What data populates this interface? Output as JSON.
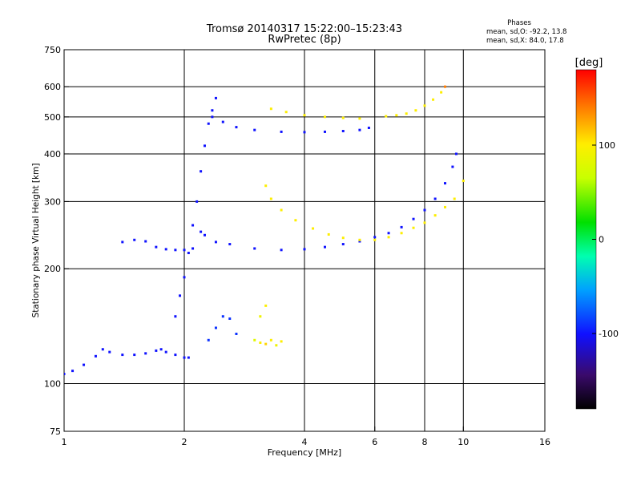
{
  "title": "Tromsø 20140317 15:22:00–15:23:43",
  "subtitle": "RwPretec (8p)",
  "phases": {
    "title": "Phases",
    "line_o": "mean, sd,O: -92.2, 13.8",
    "line_x": "mean, sd,X:  84.0, 17.8"
  },
  "colorbar": {
    "label": "[deg]",
    "ticks": [
      {
        "label": "100",
        "value": 100
      },
      {
        "label": "0",
        "value": 0
      },
      {
        "label": "-100",
        "value": -100
      }
    ],
    "range": [
      -180,
      180
    ]
  },
  "chart_data": {
    "type": "scatter",
    "title": "Tromsø 20140317 15:22:00–15:23:43",
    "subtitle": "RwPretec (8p)",
    "xlabel": "Frequency [MHz]",
    "ylabel": "Stationary phase Virtual Height [km]",
    "xscale": "log",
    "yscale": "log",
    "xlim": [
      1,
      16
    ],
    "ylim": [
      75,
      750
    ],
    "xticks": [
      {
        "label": "1",
        "value": 1
      },
      {
        "label": "2",
        "value": 2
      },
      {
        "label": "4",
        "value": 4
      },
      {
        "label": "6",
        "value": 6
      },
      {
        "label": "8",
        "value": 8
      },
      {
        "label": "10",
        "value": 10
      },
      {
        "label": "16",
        "value": 16
      }
    ],
    "yticks": [
      {
        "label": "75",
        "value": 75
      },
      {
        "label": "100",
        "value": 100
      },
      {
        "label": "200",
        "value": 200
      },
      {
        "label": "300",
        "value": 300
      },
      {
        "label": "400",
        "value": 400
      },
      {
        "label": "500",
        "value": 500
      },
      {
        "label": "600",
        "value": 600
      },
      {
        "label": "750",
        "value": 750
      }
    ],
    "grid": true,
    "color_encoding": "phase [deg]",
    "series": [
      {
        "points": [
          [
            1.0,
            106,
            -100
          ],
          [
            1.05,
            108,
            -100
          ],
          [
            1.12,
            112,
            -100
          ],
          [
            1.2,
            118,
            -100
          ],
          [
            1.25,
            123,
            -100
          ],
          [
            1.3,
            121,
            -100
          ],
          [
            1.4,
            119,
            -100
          ],
          [
            1.5,
            119,
            -100
          ],
          [
            1.6,
            120,
            -100
          ],
          [
            1.7,
            122,
            -100
          ],
          [
            1.75,
            123,
            -100
          ],
          [
            1.8,
            121,
            -100
          ],
          [
            1.9,
            119,
            -100
          ],
          [
            2.0,
            117,
            -100
          ],
          [
            2.05,
            117,
            -100
          ]
        ]
      },
      {
        "points": [
          [
            1.4,
            235,
            -100
          ],
          [
            1.5,
            238,
            -100
          ],
          [
            1.6,
            236,
            -100
          ],
          [
            1.7,
            228,
            -100
          ],
          [
            1.8,
            225,
            -100
          ],
          [
            1.9,
            224,
            -100
          ],
          [
            2.0,
            224,
            -100
          ],
          [
            2.1,
            226,
            -100
          ],
          [
            2.2,
            250,
            -100
          ],
          [
            2.25,
            245,
            -100
          ],
          [
            2.4,
            235,
            -100
          ],
          [
            2.6,
            232,
            -100
          ],
          [
            3.0,
            226,
            -100
          ],
          [
            3.5,
            224,
            -100
          ],
          [
            4.0,
            225,
            -100
          ],
          [
            4.5,
            228,
            -100
          ],
          [
            5.0,
            232,
            -100
          ],
          [
            5.5,
            236,
            -100
          ],
          [
            6.0,
            242,
            -100
          ],
          [
            6.5,
            248,
            -100
          ],
          [
            7.0,
            257,
            -100
          ],
          [
            7.5,
            270,
            -100
          ],
          [
            8.0,
            285,
            -100
          ],
          [
            8.5,
            305,
            -100
          ],
          [
            9.0,
            335,
            -100
          ],
          [
            9.4,
            370,
            -100
          ],
          [
            9.6,
            400,
            -100
          ]
        ]
      },
      {
        "points": [
          [
            3.2,
            330,
            100
          ],
          [
            3.3,
            305,
            100
          ],
          [
            3.5,
            285,
            100
          ],
          [
            3.8,
            268,
            100
          ],
          [
            4.2,
            255,
            100
          ],
          [
            4.6,
            246,
            100
          ],
          [
            5.0,
            241,
            100
          ],
          [
            5.5,
            238,
            100
          ],
          [
            6.0,
            238,
            100
          ],
          [
            6.5,
            242,
            100
          ],
          [
            7.0,
            248,
            100
          ],
          [
            7.5,
            256,
            100
          ],
          [
            8.0,
            264,
            100
          ],
          [
            8.5,
            276,
            100
          ],
          [
            9.0,
            290,
            100
          ],
          [
            9.5,
            305,
            100
          ],
          [
            10.0,
            340,
            100
          ]
        ]
      },
      {
        "points": [
          [
            2.35,
            500,
            -100
          ],
          [
            2.5,
            485,
            -100
          ],
          [
            2.7,
            470,
            -100
          ],
          [
            3.0,
            462,
            -100
          ],
          [
            3.5,
            457,
            -100
          ],
          [
            4.0,
            456,
            -100
          ],
          [
            4.5,
            457,
            -100
          ],
          [
            5.0,
            459,
            -100
          ],
          [
            5.5,
            462,
            -100
          ],
          [
            5.8,
            468,
            -100
          ]
        ]
      },
      {
        "points": [
          [
            3.3,
            525,
            100
          ],
          [
            3.6,
            515,
            100
          ],
          [
            4.0,
            505,
            100
          ],
          [
            4.5,
            500,
            100
          ],
          [
            5.0,
            497,
            100
          ],
          [
            5.5,
            495,
            100
          ]
        ]
      },
      {
        "points": [
          [
            6.4,
            502,
            100
          ],
          [
            6.8,
            505,
            100
          ],
          [
            7.2,
            510,
            100
          ],
          [
            7.6,
            520,
            100
          ],
          [
            8.0,
            535,
            100
          ],
          [
            8.4,
            555,
            100
          ],
          [
            8.8,
            580,
            100
          ],
          [
            9.0,
            600,
            140
          ]
        ]
      },
      {
        "points": [
          [
            1.9,
            150,
            -100
          ],
          [
            1.95,
            170,
            -100
          ],
          [
            2.0,
            190,
            -100
          ],
          [
            2.05,
            220,
            -100
          ],
          [
            2.1,
            260,
            -100
          ],
          [
            2.15,
            300,
            -100
          ],
          [
            2.2,
            360,
            -100
          ],
          [
            2.25,
            420,
            -100
          ],
          [
            2.3,
            480,
            -100
          ],
          [
            2.35,
            520,
            -100
          ],
          [
            2.4,
            560,
            -100
          ]
        ]
      },
      {
        "points": [
          [
            2.3,
            130,
            -90
          ],
          [
            2.4,
            140,
            -90
          ],
          [
            2.5,
            150,
            -90
          ],
          [
            2.6,
            148,
            -90
          ],
          [
            2.7,
            135,
            -90
          ],
          [
            3.0,
            130,
            80
          ],
          [
            3.1,
            128,
            100
          ],
          [
            3.2,
            127,
            110
          ],
          [
            3.3,
            130,
            100
          ],
          [
            3.4,
            126,
            90
          ],
          [
            3.5,
            129,
            100
          ],
          [
            3.1,
            150,
            90
          ],
          [
            3.2,
            160,
            100
          ]
        ]
      }
    ]
  }
}
